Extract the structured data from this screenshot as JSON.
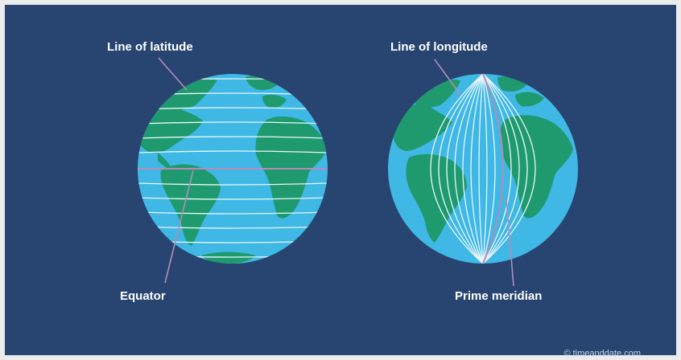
{
  "labels": {
    "latitude": "Line of latitude",
    "longitude": "Line of longitude",
    "equator": "Equator",
    "prime_meridian": "Prime meridian"
  },
  "credit": "© timeanddate.com",
  "colors": {
    "background": "#274570",
    "ocean": "#3fb8e6",
    "land": "#1f9a6e",
    "grid_line": "#e8f6fc",
    "callout_line": "#b58bb8"
  }
}
